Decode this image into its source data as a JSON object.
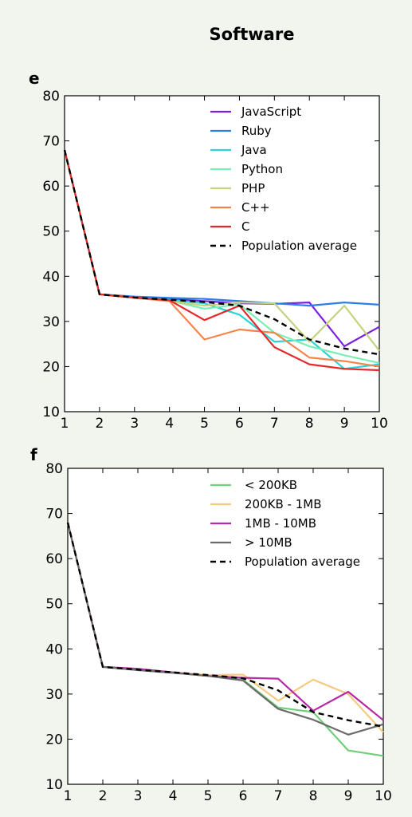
{
  "title": "Software",
  "chart_data": [
    {
      "type": "line",
      "panel": "e",
      "x": [
        1,
        2,
        3,
        4,
        5,
        6,
        7,
        8,
        9,
        10
      ],
      "xlim": [
        1,
        10
      ],
      "ylim": [
        10,
        80
      ],
      "yticks": [
        10,
        20,
        30,
        40,
        50,
        60,
        70,
        80
      ],
      "grid": false,
      "legend_position": "top-right",
      "series": [
        {
          "name": "JavaScript",
          "color": "#7b1fe0",
          "dashed": false,
          "values": [
            68,
            36,
            35.4,
            35,
            34.5,
            34,
            33.9,
            34.2,
            24.5,
            28.8
          ]
        },
        {
          "name": "Ruby",
          "color": "#2a7ee8",
          "dashed": false,
          "values": [
            68,
            36,
            35.5,
            35.2,
            35,
            34.5,
            34,
            33.5,
            34.2,
            33.7
          ]
        },
        {
          "name": "Java",
          "color": "#2ad4d4",
          "dashed": false,
          "values": [
            68,
            36,
            35.3,
            34.8,
            34,
            31.5,
            25.5,
            26,
            19.5,
            20.5
          ]
        },
        {
          "name": "Python",
          "color": "#7aeeb6",
          "dashed": false,
          "values": [
            68,
            36,
            35.3,
            34.6,
            32.8,
            33.8,
            27.5,
            24.5,
            22.5,
            20.8
          ]
        },
        {
          "name": "PHP",
          "color": "#c6d27e",
          "dashed": false,
          "values": [
            68,
            36,
            35.3,
            34.5,
            33.5,
            34.2,
            34,
            25.5,
            33.5,
            23.5
          ]
        },
        {
          "name": "C++",
          "color": "#f5844b",
          "dashed": false,
          "values": [
            68,
            36,
            35.2,
            34.5,
            26,
            28.2,
            27.5,
            22,
            21.2,
            20
          ]
        },
        {
          "name": "C",
          "color": "#e5282a",
          "dashed": false,
          "values": [
            68,
            36,
            35.3,
            34.7,
            30.3,
            33.5,
            24.3,
            20.5,
            19.5,
            19.2
          ]
        },
        {
          "name": "Population average",
          "color": "#000000",
          "dashed": true,
          "values": [
            68,
            36,
            35.3,
            34.8,
            34.3,
            33.5,
            30.5,
            26,
            24,
            22.7
          ]
        }
      ]
    },
    {
      "type": "line",
      "panel": "f",
      "x": [
        1,
        2,
        3,
        4,
        5,
        6,
        7,
        8,
        9,
        10
      ],
      "xlim": [
        1,
        10
      ],
      "ylim": [
        10,
        80
      ],
      "yticks": [
        10,
        20,
        30,
        40,
        50,
        60,
        70,
        80
      ],
      "grid": false,
      "legend_position": "top-right",
      "series": [
        {
          "name": "< 200KB",
          "color": "#6fcf78",
          "dashed": false,
          "values": [
            68,
            36,
            35.3,
            34.7,
            34,
            33.2,
            27,
            26,
            17.5,
            16.3
          ]
        },
        {
          "name": "200KB - 1MB",
          "color": "#f6ca80",
          "dashed": false,
          "values": [
            68,
            36,
            35.5,
            34.8,
            34.2,
            34.3,
            28.5,
            33.2,
            30,
            21.5
          ]
        },
        {
          "name": "1MB - 10MB",
          "color": "#b62aa8",
          "dashed": false,
          "values": [
            68,
            36,
            35.6,
            34.8,
            34,
            33.6,
            33.4,
            26.3,
            30.5,
            24.2
          ]
        },
        {
          "name": "> 10MB",
          "color": "#6b6b6b",
          "dashed": false,
          "values": [
            68,
            36,
            35.3,
            34.7,
            34,
            33,
            26.7,
            24.3,
            21,
            23.3
          ]
        },
        {
          "name": "Population average",
          "color": "#000000",
          "dashed": true,
          "values": [
            68,
            36,
            35.4,
            34.8,
            34.2,
            33.5,
            30.8,
            26,
            24.2,
            22.8
          ]
        }
      ]
    }
  ]
}
